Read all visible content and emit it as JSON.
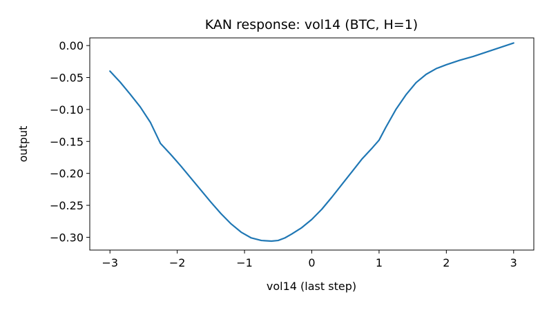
{
  "chart_data": {
    "type": "line",
    "title": "KAN response: vol14 (BTC, H=1)",
    "xlabel": "vol14 (last step)",
    "ylabel": "output",
    "xlim": [
      -3.3,
      3.3
    ],
    "ylim": [
      -0.32,
      0.012
    ],
    "xticks": [
      -3,
      -2,
      -1,
      0,
      1,
      2,
      3
    ],
    "xtick_labels": [
      "−3",
      "−2",
      "−1",
      "0",
      "1",
      "2",
      "3"
    ],
    "yticks": [
      0.0,
      -0.05,
      -0.1,
      -0.15,
      -0.2,
      -0.25,
      -0.3
    ],
    "ytick_labels": [
      "0.00",
      "−0.05",
      "−0.10",
      "−0.15",
      "−0.20",
      "−0.25",
      "−0.30"
    ],
    "grid": false,
    "series": [
      {
        "color": "#1f77b4",
        "x": [
          -3.0,
          -2.85,
          -2.7,
          -2.55,
          -2.4,
          -2.25,
          -2.1,
          -1.95,
          -1.8,
          -1.65,
          -1.5,
          -1.35,
          -1.2,
          -1.05,
          -0.9,
          -0.75,
          -0.6,
          -0.5,
          -0.4,
          -0.3,
          -0.15,
          0.0,
          0.15,
          0.3,
          0.45,
          0.6,
          0.75,
          0.9,
          1.0,
          1.1,
          1.25,
          1.4,
          1.55,
          1.7,
          1.85,
          2.0,
          2.2,
          2.4,
          2.6,
          2.8,
          3.0
        ],
        "y": [
          -0.04,
          -0.057,
          -0.076,
          -0.096,
          -0.12,
          -0.153,
          -0.17,
          -0.188,
          -0.207,
          -0.226,
          -0.245,
          -0.263,
          -0.279,
          -0.292,
          -0.301,
          -0.305,
          -0.306,
          -0.305,
          -0.301,
          -0.295,
          -0.285,
          -0.272,
          -0.256,
          -0.237,
          -0.217,
          -0.197,
          -0.177,
          -0.16,
          -0.148,
          -0.128,
          -0.1,
          -0.077,
          -0.058,
          -0.045,
          -0.036,
          -0.03,
          -0.023,
          -0.017,
          -0.01,
          -0.003,
          0.004
        ]
      }
    ]
  }
}
